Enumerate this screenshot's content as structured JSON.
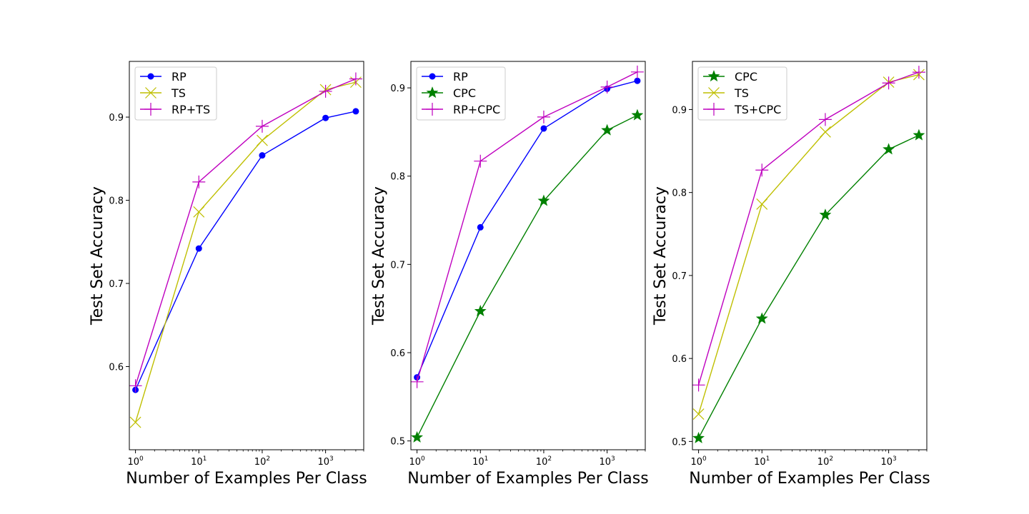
{
  "chart_data": [
    {
      "type": "line",
      "xscale": "log",
      "xlim": [
        0.8,
        4000
      ],
      "ylim": [
        0.5,
        0.967
      ],
      "x": [
        1,
        10,
        100,
        1000,
        3000
      ],
      "xticks": [
        1,
        10,
        100,
        1000
      ],
      "xtick_bases": [
        "10",
        "10",
        "10",
        "10"
      ],
      "xtick_exps": [
        "0",
        "1",
        "2",
        "3"
      ],
      "yticks": [
        0.6,
        0.7,
        0.8,
        0.9
      ],
      "ytick_labels": [
        "0.6",
        "0.7",
        "0.8",
        "0.9"
      ],
      "xlabel": "Number of Examples Per Class",
      "ylabel": "Test Set Accuracy",
      "legend_position": "top-left",
      "grid": false,
      "series": [
        {
          "name": "RP",
          "color": "#0000ff",
          "marker": "circle",
          "values": [
            0.572,
            0.742,
            0.854,
            0.899,
            0.907
          ]
        },
        {
          "name": "TS",
          "color": "#bfbf00",
          "marker": "x",
          "values": [
            0.533,
            0.786,
            0.872,
            0.933,
            0.942
          ]
        },
        {
          "name": "RP+TS",
          "color": "#bf00bf",
          "marker": "plus",
          "values": [
            0.577,
            0.822,
            0.889,
            0.931,
            0.946
          ]
        }
      ]
    },
    {
      "type": "line",
      "xscale": "log",
      "xlim": [
        0.8,
        4000
      ],
      "ylim": [
        0.49,
        0.93
      ],
      "x": [
        1,
        10,
        100,
        1000,
        3000
      ],
      "xticks": [
        1,
        10,
        100,
        1000
      ],
      "xtick_bases": [
        "10",
        "10",
        "10",
        "10"
      ],
      "xtick_exps": [
        "0",
        "1",
        "2",
        "3"
      ],
      "yticks": [
        0.5,
        0.6,
        0.7,
        0.8,
        0.9
      ],
      "ytick_labels": [
        "0.5",
        "0.6",
        "0.7",
        "0.8",
        "0.9"
      ],
      "xlabel": "Number of Examples Per Class",
      "ylabel": "Test Set Accuracy",
      "legend_position": "top-left",
      "grid": false,
      "series": [
        {
          "name": "RP",
          "color": "#0000ff",
          "marker": "circle",
          "values": [
            0.572,
            0.742,
            0.854,
            0.899,
            0.908
          ]
        },
        {
          "name": "CPC",
          "color": "#008000",
          "marker": "star",
          "values": [
            0.504,
            0.647,
            0.772,
            0.852,
            0.869
          ]
        },
        {
          "name": "RP+CPC",
          "color": "#bf00bf",
          "marker": "plus",
          "values": [
            0.567,
            0.817,
            0.867,
            0.901,
            0.918
          ]
        }
      ]
    },
    {
      "type": "line",
      "xscale": "log",
      "xlim": [
        0.8,
        4000
      ],
      "ylim": [
        0.49,
        0.958
      ],
      "x": [
        1,
        10,
        100,
        1000,
        3000
      ],
      "xticks": [
        1,
        10,
        100,
        1000
      ],
      "xtick_bases": [
        "10",
        "10",
        "10",
        "10"
      ],
      "xtick_exps": [
        "0",
        "1",
        "2",
        "3"
      ],
      "yticks": [
        0.5,
        0.6,
        0.7,
        0.8,
        0.9
      ],
      "ytick_labels": [
        "0.5",
        "0.6",
        "0.7",
        "0.8",
        "0.9"
      ],
      "xlabel": "Number of Examples Per Class",
      "ylabel": "Test Set Accuracy",
      "legend_position": "top-left",
      "grid": false,
      "series": [
        {
          "name": "CPC",
          "color": "#008000",
          "marker": "star",
          "values": [
            0.504,
            0.648,
            0.773,
            0.852,
            0.869
          ]
        },
        {
          "name": "TS",
          "color": "#bfbf00",
          "marker": "x",
          "values": [
            0.533,
            0.786,
            0.873,
            0.933,
            0.942
          ]
        },
        {
          "name": "TS+CPC",
          "color": "#bf00bf",
          "marker": "plus",
          "values": [
            0.568,
            0.827,
            0.888,
            0.932,
            0.945
          ]
        }
      ]
    }
  ]
}
